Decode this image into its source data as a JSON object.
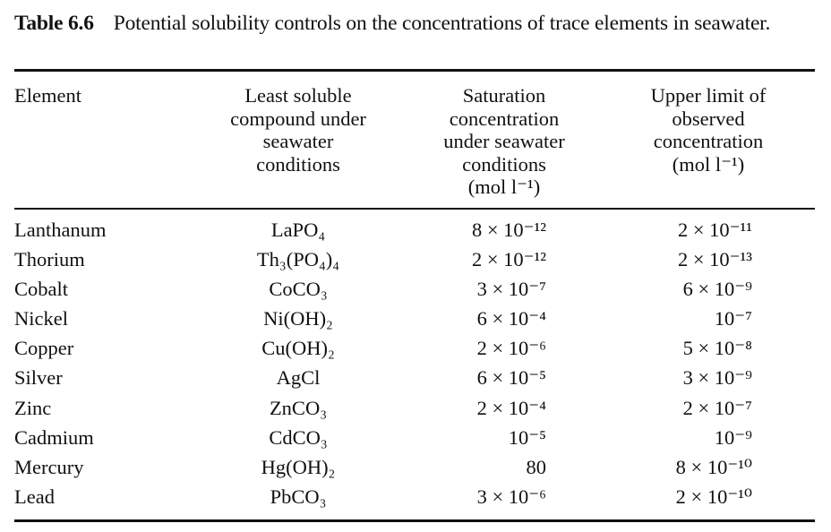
{
  "caption": {
    "number": "Table 6.6",
    "text": "Potential solubility controls on the concentrations of trace elements in seawater."
  },
  "headers": {
    "element": "Element",
    "compound": [
      "Least soluble",
      "compound under",
      "seawater",
      "conditions"
    ],
    "saturation": [
      "Saturation",
      "concentration",
      "under seawater",
      "conditions",
      "(mol l⁻¹)"
    ],
    "upper": [
      "Upper limit of",
      "observed",
      "concentration",
      "(mol l⁻¹)"
    ]
  },
  "rows": [
    {
      "element": "Lanthanum",
      "compound": "LaPO₄",
      "saturation": "8 × 10⁻¹²",
      "upper": "2 × 10⁻¹¹"
    },
    {
      "element": "Thorium",
      "compound": "Th₃(PO₄)₄",
      "saturation": "2 × 10⁻¹²",
      "upper": "2 × 10⁻¹³"
    },
    {
      "element": "Cobalt",
      "compound": "CoCO₃",
      "saturation": "3 × 10⁻⁷",
      "upper": "6 × 10⁻⁹"
    },
    {
      "element": "Nickel",
      "compound": "Ni(OH)₂",
      "saturation": "6 × 10⁻⁴",
      "upper": "10⁻⁷"
    },
    {
      "element": "Copper",
      "compound": "Cu(OH)₂",
      "saturation": "2 × 10⁻⁶",
      "upper": "5 × 10⁻⁸"
    },
    {
      "element": "Silver",
      "compound": "AgCl",
      "saturation": "6 × 10⁻⁵",
      "upper": "3 × 10⁻⁹"
    },
    {
      "element": "Zinc",
      "compound": "ZnCO₃",
      "saturation": "2 × 10⁻⁴",
      "upper": "2 × 10⁻⁷"
    },
    {
      "element": "Cadmium",
      "compound": "CdCO₃",
      "saturation": "10⁻⁵",
      "upper": "10⁻⁹"
    },
    {
      "element": "Mercury",
      "compound": "Hg(OH)₂",
      "saturation": "80",
      "upper": "8 × 10⁻¹⁰"
    },
    {
      "element": "Lead",
      "compound": "PbCO₃",
      "saturation": "3 × 10⁻⁶",
      "upper": "2 × 10⁻¹⁰"
    }
  ]
}
